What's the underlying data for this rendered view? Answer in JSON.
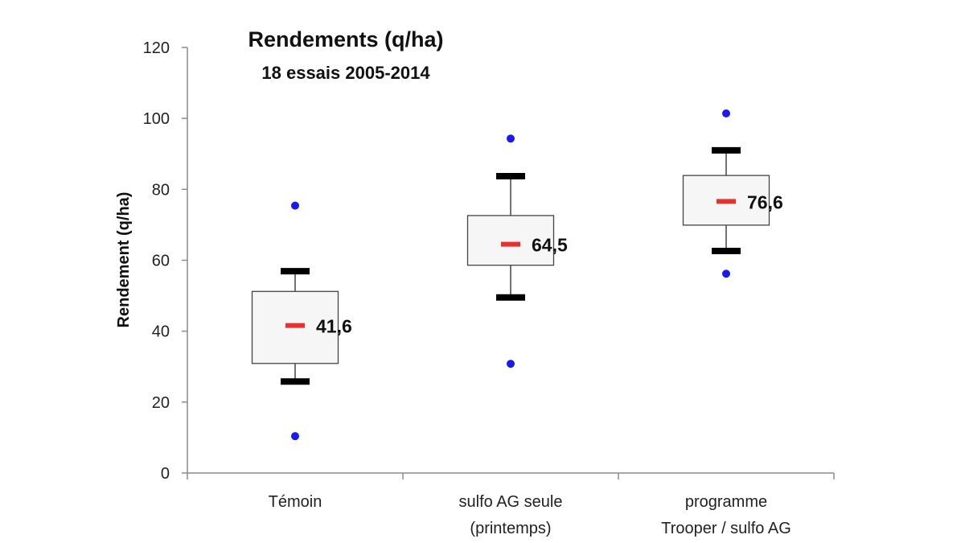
{
  "chart_data": {
    "type": "box",
    "title": "Rendements (q/ha)",
    "subtitle": "18 essais 2005-2014",
    "xlabel": "",
    "ylabel": "Rendement (q/ha)",
    "ylim": [
      0,
      120
    ],
    "yticks": [
      "0",
      "20",
      "40",
      "60",
      "80",
      "100",
      "120"
    ],
    "grid": false,
    "categories": [
      [
        "Témoin"
      ],
      [
        "sulfo AG seule",
        "(printemps)"
      ],
      [
        "programme",
        "Trooper / sulfo AG"
      ]
    ],
    "boxes": [
      {
        "min": 10.4,
        "whisker_low": 25.8,
        "q1": 30.9,
        "median": 41.6,
        "q3": 51.2,
        "whisker_high": 56.9,
        "max": 75.4,
        "median_label": "41,6"
      },
      {
        "min": 30.8,
        "whisker_low": 49.5,
        "q1": 58.6,
        "median": 64.5,
        "q3": 72.6,
        "whisker_high": 83.7,
        "max": 94.3,
        "median_label": "64,5"
      },
      {
        "min": 56.2,
        "whisker_low": 62.6,
        "q1": 69.9,
        "median": 76.6,
        "q3": 83.9,
        "whisker_high": 91.0,
        "max": 101.4,
        "median_label": "76,6"
      }
    ],
    "colors": {
      "box_fill": "#f6f6f6",
      "box_stroke": "#444444",
      "whisker_cap": "#000000",
      "median": "#e83030",
      "outlier": "#1a1aee"
    }
  }
}
